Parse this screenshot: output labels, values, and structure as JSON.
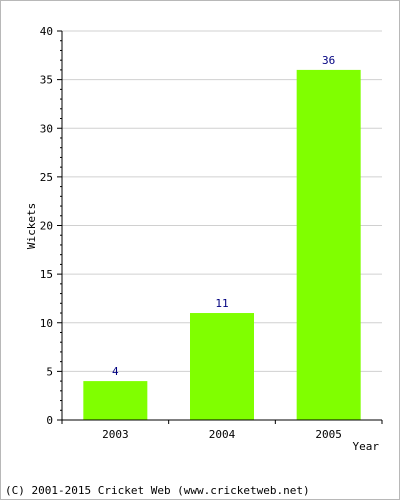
{
  "chart_data": {
    "type": "bar",
    "categories": [
      "2003",
      "2004",
      "2005"
    ],
    "values": [
      4,
      11,
      36
    ],
    "title": "",
    "xlabel": "Year",
    "ylabel": "Wickets",
    "ylim": [
      0,
      40
    ],
    "yticks": [
      0,
      5,
      10,
      15,
      20,
      25,
      30,
      35,
      40
    ],
    "grid": true,
    "legend": "none",
    "data_labels": true,
    "colors": {
      "bar": "#80ff00",
      "grid": "#d0d0d0",
      "axis": "#000000",
      "data_label": "#000080"
    }
  },
  "footer": {
    "copyright": "(C) 2001-2015 Cricket Web (www.cricketweb.net)"
  }
}
